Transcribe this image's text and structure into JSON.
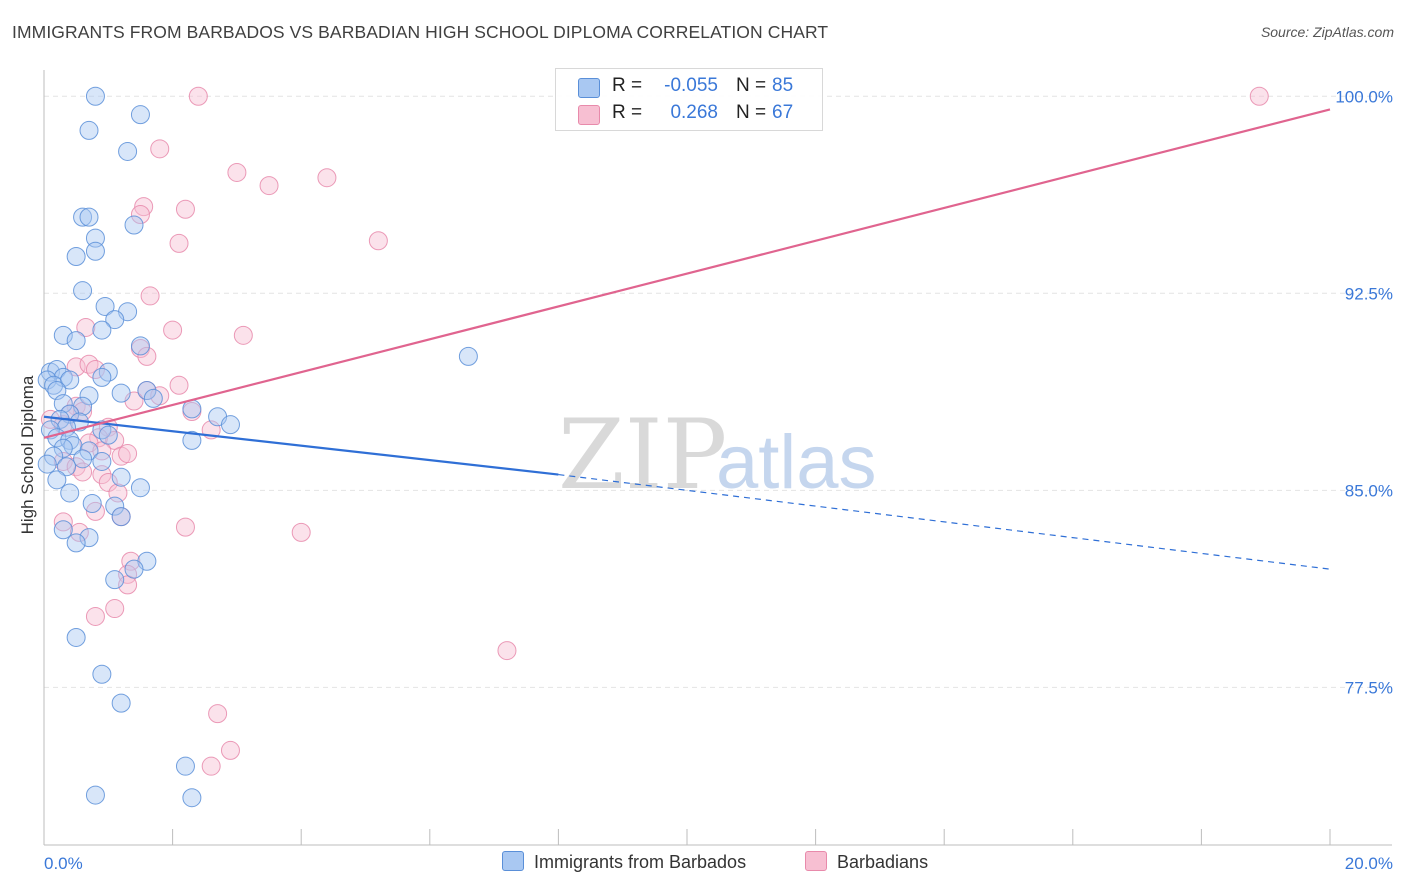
{
  "title": "IMMIGRANTS FROM BARBADOS VS BARBADIAN HIGH SCHOOL DIPLOMA CORRELATION CHART",
  "source": "Source: ZipAtlas.com",
  "colors": {
    "blue_fill": "#a9c8f2",
    "blue_stroke": "#5a8fd8",
    "blue_line": "#2f6fd6",
    "pink_fill": "#f7bfd2",
    "pink_stroke": "#e88aab",
    "pink_line": "#e0648f",
    "axis_text": "#3a78d8",
    "grid": "#e4e4e4"
  },
  "stats": {
    "blue": {
      "r_label": "R =",
      "r_value": "-0.055",
      "n_label": "N =",
      "n_value": "85"
    },
    "pink": {
      "r_label": "R =",
      "r_value": "0.268",
      "n_label": "N =",
      "n_value": "67"
    }
  },
  "legend": {
    "blue": "Immigrants from Barbados",
    "pink": "Barbadians"
  },
  "watermark": {
    "zip": "ZIP",
    "atlas": "atlas"
  },
  "chart_data": {
    "type": "scatter",
    "title": "IMMIGRANTS FROM BARBADOS VS BARBADIAN HIGH SCHOOL DIPLOMA CORRELATION CHART",
    "xlabel": "",
    "ylabel": "High School Diploma",
    "xlim": [
      0,
      20
    ],
    "ylim": [
      71.5,
      101
    ],
    "x_tick_labels": [
      {
        "value": 0,
        "label": "0.0%"
      },
      {
        "value": 20,
        "label": "20.0%"
      }
    ],
    "y_tick_labels": [
      {
        "value": 100,
        "label": "100.0%"
      },
      {
        "value": 92.5,
        "label": "92.5%"
      },
      {
        "value": 85,
        "label": "85.0%"
      },
      {
        "value": 77.5,
        "label": "77.5%"
      }
    ],
    "grid": true,
    "series": [
      {
        "name": "Immigrants from Barbados",
        "color": "blue",
        "trend": {
          "x0": 0,
          "y0": 87.8,
          "x1": 8,
          "y1": 85.6,
          "dash_x1": 20,
          "dash_y1": 82.0
        },
        "points": [
          [
            0.8,
            100.0
          ],
          [
            1.5,
            99.3
          ],
          [
            0.7,
            98.7
          ],
          [
            1.3,
            97.9
          ],
          [
            0.6,
            95.4
          ],
          [
            0.7,
            95.4
          ],
          [
            1.4,
            95.1
          ],
          [
            0.8,
            94.6
          ],
          [
            0.8,
            94.1
          ],
          [
            0.5,
            93.9
          ],
          [
            0.6,
            92.6
          ],
          [
            0.95,
            92.0
          ],
          [
            1.3,
            91.8
          ],
          [
            1.1,
            91.5
          ],
          [
            0.9,
            91.1
          ],
          [
            0.3,
            90.9
          ],
          [
            0.5,
            90.7
          ],
          [
            1.5,
            90.5
          ],
          [
            6.6,
            90.1
          ],
          [
            0.1,
            89.5
          ],
          [
            0.2,
            89.6
          ],
          [
            0.3,
            89.3
          ],
          [
            0.05,
            89.2
          ],
          [
            0.15,
            89.0
          ],
          [
            0.4,
            89.2
          ],
          [
            1.0,
            89.5
          ],
          [
            0.9,
            89.3
          ],
          [
            0.2,
            88.8
          ],
          [
            0.7,
            88.6
          ],
          [
            1.2,
            88.7
          ],
          [
            1.6,
            88.8
          ],
          [
            1.7,
            88.5
          ],
          [
            0.3,
            88.3
          ],
          [
            0.6,
            88.2
          ],
          [
            0.4,
            87.9
          ],
          [
            2.3,
            88.1
          ],
          [
            0.25,
            87.7
          ],
          [
            0.55,
            87.6
          ],
          [
            2.7,
            87.8
          ],
          [
            0.35,
            87.4
          ],
          [
            0.1,
            87.3
          ],
          [
            0.9,
            87.3
          ],
          [
            1.0,
            87.1
          ],
          [
            2.9,
            87.5
          ],
          [
            0.2,
            87.0
          ],
          [
            0.4,
            86.9
          ],
          [
            0.45,
            86.7
          ],
          [
            0.7,
            86.5
          ],
          [
            0.3,
            86.6
          ],
          [
            0.15,
            86.3
          ],
          [
            0.6,
            86.2
          ],
          [
            0.9,
            86.1
          ],
          [
            0.05,
            86.0
          ],
          [
            0.35,
            85.9
          ],
          [
            2.3,
            86.9
          ],
          [
            0.2,
            85.4
          ],
          [
            1.2,
            85.5
          ],
          [
            1.5,
            85.1
          ],
          [
            0.4,
            84.9
          ],
          [
            0.75,
            84.5
          ],
          [
            1.1,
            84.4
          ],
          [
            1.2,
            84.0
          ],
          [
            0.3,
            83.5
          ],
          [
            0.7,
            83.2
          ],
          [
            0.5,
            83.0
          ],
          [
            1.6,
            82.3
          ],
          [
            1.4,
            82.0
          ],
          [
            1.1,
            81.6
          ],
          [
            0.5,
            79.4
          ],
          [
            0.9,
            78.0
          ],
          [
            1.2,
            76.9
          ],
          [
            2.2,
            74.5
          ],
          [
            0.8,
            73.4
          ],
          [
            2.3,
            73.3
          ]
        ]
      },
      {
        "name": "Barbadians",
        "color": "pink",
        "trend": {
          "x0": 0,
          "y0": 87.0,
          "x1": 20,
          "y1": 99.5
        },
        "points": [
          [
            2.4,
            100.0
          ],
          [
            18.9,
            100.0
          ],
          [
            1.8,
            98.0
          ],
          [
            3.0,
            97.1
          ],
          [
            4.4,
            96.9
          ],
          [
            3.5,
            96.6
          ],
          [
            1.55,
            95.8
          ],
          [
            1.5,
            95.5
          ],
          [
            2.2,
            95.7
          ],
          [
            5.2,
            94.5
          ],
          [
            2.1,
            94.4
          ],
          [
            1.65,
            92.4
          ],
          [
            0.65,
            91.2
          ],
          [
            2.0,
            91.1
          ],
          [
            3.1,
            90.9
          ],
          [
            1.5,
            90.4
          ],
          [
            1.6,
            90.1
          ],
          [
            0.5,
            89.7
          ],
          [
            0.7,
            89.8
          ],
          [
            0.8,
            89.6
          ],
          [
            2.1,
            89.0
          ],
          [
            1.6,
            88.8
          ],
          [
            1.8,
            88.6
          ],
          [
            1.4,
            88.4
          ],
          [
            0.5,
            88.2
          ],
          [
            0.6,
            88.0
          ],
          [
            0.4,
            87.9
          ],
          [
            0.1,
            87.7
          ],
          [
            2.3,
            88.0
          ],
          [
            0.3,
            87.5
          ],
          [
            1.0,
            87.4
          ],
          [
            2.6,
            87.3
          ],
          [
            0.85,
            87.0
          ],
          [
            0.7,
            86.8
          ],
          [
            1.1,
            86.9
          ],
          [
            0.9,
            86.5
          ],
          [
            1.2,
            86.3
          ],
          [
            1.3,
            86.4
          ],
          [
            0.3,
            86.1
          ],
          [
            0.5,
            85.9
          ],
          [
            0.6,
            85.7
          ],
          [
            0.9,
            85.6
          ],
          [
            1.0,
            85.3
          ],
          [
            1.15,
            84.9
          ],
          [
            0.8,
            84.2
          ],
          [
            1.2,
            84.0
          ],
          [
            0.3,
            83.8
          ],
          [
            2.2,
            83.6
          ],
          [
            4.0,
            83.4
          ],
          [
            0.55,
            83.4
          ],
          [
            1.35,
            82.3
          ],
          [
            1.3,
            81.8
          ],
          [
            1.3,
            81.4
          ],
          [
            1.1,
            80.5
          ],
          [
            0.8,
            80.2
          ],
          [
            7.2,
            78.9
          ],
          [
            2.7,
            76.5
          ],
          [
            2.9,
            75.1
          ],
          [
            2.6,
            74.5
          ]
        ]
      }
    ]
  }
}
